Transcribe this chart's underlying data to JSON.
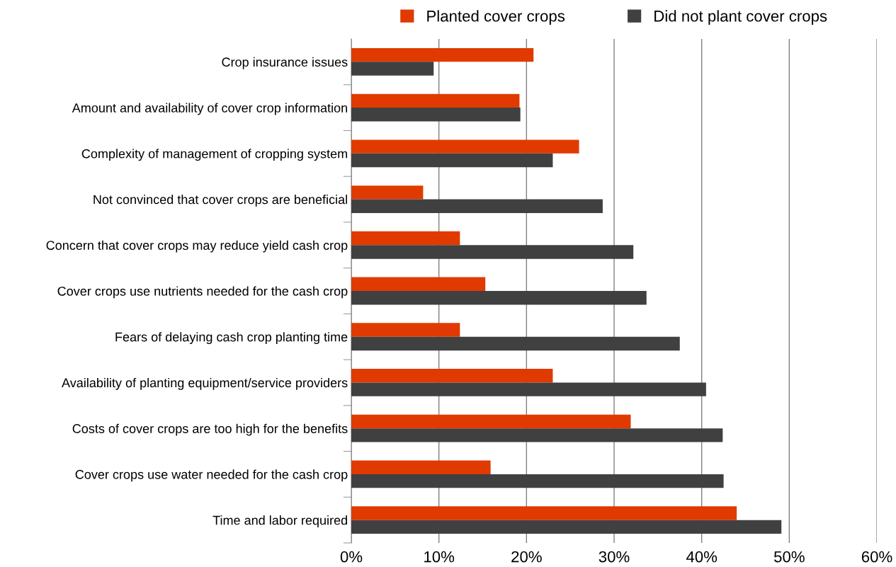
{
  "chart_data": {
    "type": "bar",
    "orientation": "horizontal",
    "categories": [
      "Crop insurance issues",
      "Amount and availability of cover crop information",
      "Complexity of management of cropping system",
      "Not convinced that cover crops are beneficial",
      "Concern that cover crops may reduce yield cash crop",
      "Cover crops use nutrients needed for the cash crop",
      "Fears of delaying cash crop planting time",
      "Availability of planting equipment/service providers",
      "Costs of cover crops are too high for the benefits",
      "Cover crops use water needed for the cash crop",
      "Time and labor required"
    ],
    "series": [
      {
        "name": "Planted cover crops",
        "color": "#e03a00",
        "values": [
          0.208,
          0.192,
          0.26,
          0.082,
          0.124,
          0.153,
          0.124,
          0.23,
          0.319,
          0.159,
          0.44
        ]
      },
      {
        "name": "Did not plant cover crops",
        "color": "#404040",
        "values": [
          0.094,
          0.193,
          0.23,
          0.287,
          0.322,
          0.337,
          0.375,
          0.405,
          0.424,
          0.425,
          0.491
        ]
      }
    ],
    "xlim": [
      0,
      0.6
    ],
    "xticks": [
      {
        "value": 0,
        "label": "0%"
      },
      {
        "value": 0.1,
        "label": "10%"
      },
      {
        "value": 0.2,
        "label": "20%"
      },
      {
        "value": 0.3,
        "label": "30%"
      },
      {
        "value": 0.4,
        "label": "40%"
      },
      {
        "value": 0.5,
        "label": "50%"
      },
      {
        "value": 0.6,
        "label": "60%"
      }
    ],
    "grid": "x",
    "legend": "top"
  }
}
